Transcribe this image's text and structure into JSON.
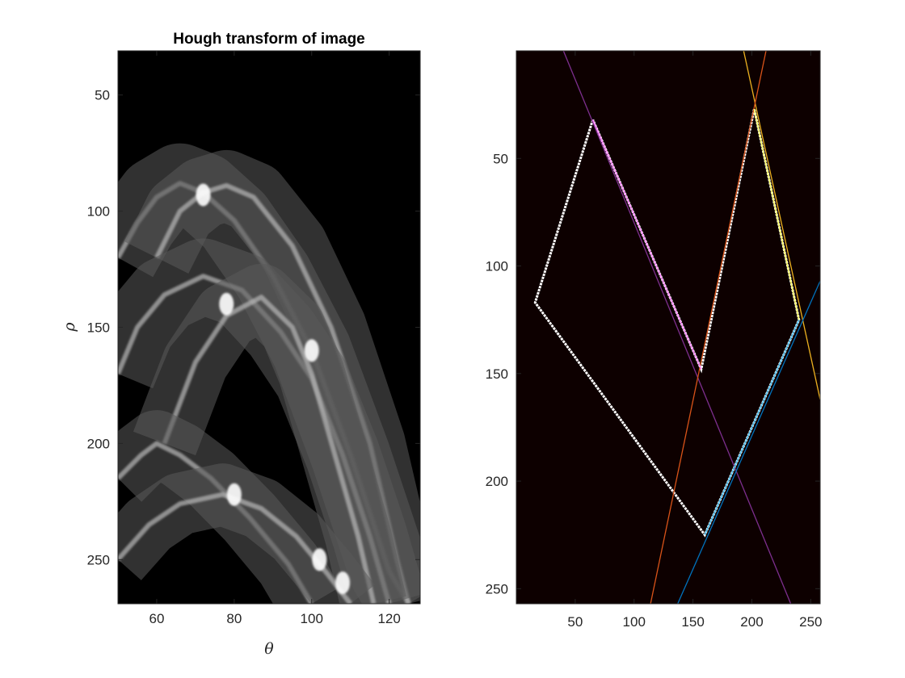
{
  "chart_data": [
    {
      "type": "heatmap",
      "title": "Hough transform of image",
      "xlabel": "θ",
      "ylabel": "ρ",
      "xlim": [
        50,
        128
      ],
      "ylim": [
        31,
        269
      ],
      "y_reversed": true,
      "colormap": "gray",
      "background": "#000000",
      "xticks": [
        60,
        80,
        100,
        120
      ],
      "yticks": [
        50,
        100,
        150,
        200,
        250
      ],
      "ridge_bands": [
        {
          "name": "",
          "peak_theta": 66,
          "peak_rho": 88,
          "width": 180,
          "points": [
            [
              50,
              120
            ],
            [
              55,
              105
            ],
            [
              60,
              94
            ],
            [
              66,
              88
            ],
            [
              72,
              92
            ],
            [
              80,
              104
            ],
            [
              90,
              128
            ],
            [
              100,
              160
            ],
            [
              110,
              205
            ],
            [
              120,
              255
            ],
            [
              125,
              269
            ]
          ]
        },
        {
          "name": "",
          "peak_theta": 78,
          "peak_rho": 89,
          "width": 160,
          "points": [
            [
              60,
              120
            ],
            [
              66,
              100
            ],
            [
              72,
              92
            ],
            [
              78,
              89
            ],
            [
              85,
              94
            ],
            [
              95,
              115
            ],
            [
              105,
              150
            ],
            [
              115,
              200
            ],
            [
              122,
              250
            ],
            [
              125,
              269
            ]
          ]
        },
        {
          "name": "",
          "peak_theta": 72,
          "peak_rho": 128,
          "width": 170,
          "points": [
            [
              50,
              170
            ],
            [
              55,
              150
            ],
            [
              62,
              136
            ],
            [
              72,
              128
            ],
            [
              82,
              134
            ],
            [
              92,
              152
            ],
            [
              100,
              172
            ],
            [
              108,
              205
            ],
            [
              115,
              240
            ],
            [
              120,
              269
            ]
          ]
        },
        {
          "name": "",
          "peak_theta": 87,
          "peak_rho": 137,
          "width": 150,
          "points": [
            [
              62,
              200
            ],
            [
              70,
              165
            ],
            [
              78,
              145
            ],
            [
              87,
              137
            ],
            [
              95,
              150
            ],
            [
              100,
              170
            ],
            [
              106,
              205
            ],
            [
              112,
              240
            ],
            [
              116,
              269
            ]
          ]
        },
        {
          "name": "",
          "peak_theta": 60,
          "peak_rho": 200,
          "width": 150,
          "points": [
            [
              50,
              215
            ],
            [
              56,
              205
            ],
            [
              60,
              200
            ],
            [
              66,
              205
            ],
            [
              74,
              215
            ],
            [
              84,
              232
            ],
            [
              94,
              252
            ],
            [
              100,
              269
            ]
          ]
        },
        {
          "name": "",
          "peak_theta": 77,
          "peak_rho": 222,
          "width": 140,
          "points": [
            [
              50,
              250
            ],
            [
              58,
              235
            ],
            [
              66,
              226
            ],
            [
              77,
              222
            ],
            [
              87,
              228
            ],
            [
              96,
              240
            ],
            [
              104,
              256
            ],
            [
              110,
              269
            ]
          ]
        }
      ],
      "bright_points": [
        {
          "theta": 72,
          "rho": 93
        },
        {
          "theta": 78,
          "rho": 140
        },
        {
          "theta": 100,
          "rho": 160
        },
        {
          "theta": 80,
          "rho": 222
        },
        {
          "theta": 102,
          "rho": 250
        },
        {
          "theta": 108,
          "rho": 260
        }
      ]
    },
    {
      "type": "line",
      "title": "",
      "xlim": [
        0,
        258
      ],
      "ylim": [
        0,
        257
      ],
      "y_reversed": true,
      "background": "#0d0000",
      "xticks": [
        50,
        100,
        150,
        200,
        250
      ],
      "yticks": [
        50,
        100,
        150,
        200,
        250
      ],
      "shape_outline": {
        "color": "#ffffff",
        "paths": [
          [
            [
              65,
              32
            ],
            [
              16,
              117
            ],
            [
              160,
              225
            ],
            [
              240,
              125
            ],
            [
              202,
              27
            ],
            [
              157,
              148
            ],
            [
              65,
              32
            ]
          ]
        ]
      },
      "series": [
        {
          "name": "",
          "color": "#7e2f8e",
          "points": [
            [
              40,
              0
            ],
            [
              233,
              257
            ]
          ]
        },
        {
          "name": "",
          "color": "#edb120",
          "points": [
            [
              193,
              0
            ],
            [
              258,
              162
            ]
          ]
        },
        {
          "name": "",
          "color": "#d95319",
          "points": [
            [
              212,
              0
            ],
            [
              114,
              257
            ]
          ]
        },
        {
          "name": "",
          "color": "#0072bd",
          "points": [
            [
              137,
              257
            ],
            [
              258,
              107
            ]
          ]
        },
        {
          "name": "",
          "color": "#4dbeee",
          "points": [
            [
              160,
              225
            ],
            [
              240,
              125
            ]
          ]
        },
        {
          "name": "",
          "color": "#ff88ff",
          "points": [
            [
              65,
              32
            ],
            [
              157,
              148
            ]
          ]
        },
        {
          "name": "",
          "color": "#ffff66",
          "points": [
            [
              202,
              27
            ],
            [
              240,
              125
            ]
          ]
        }
      ]
    }
  ]
}
